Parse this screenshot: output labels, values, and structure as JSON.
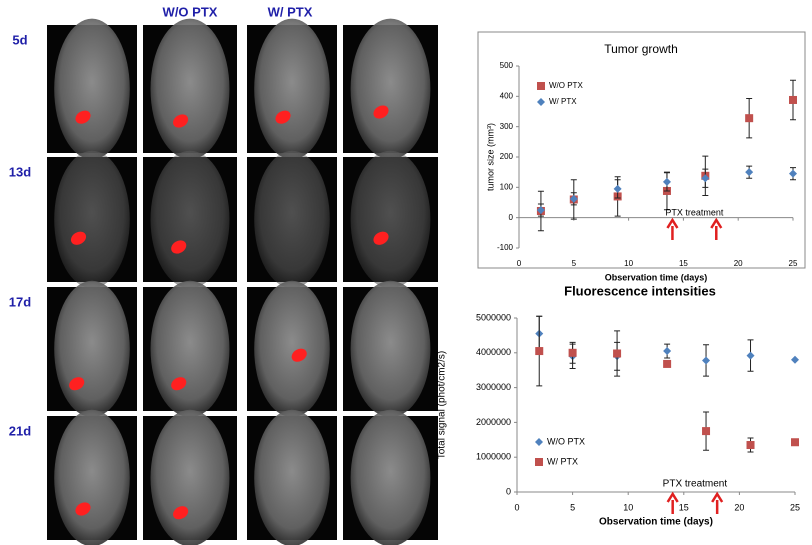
{
  "panel": {
    "columns": [
      "W/O PTX",
      "W/ PTX"
    ],
    "rows": [
      "5d",
      "13d",
      "17d",
      "21d"
    ]
  },
  "chart_data": [
    {
      "type": "scatter",
      "title": "Tumor growth",
      "x_label": "Observation time (days)",
      "y_label": "tumor size (mm³)",
      "x": [
        2,
        5,
        9,
        13.5,
        17,
        21,
        25
      ],
      "series": [
        {
          "name": "W/O PTX",
          "color": "#c0504d",
          "marker": "square",
          "values": [
            22,
            60,
            70,
            88,
            138,
            328,
            388
          ],
          "errors": [
            65,
            65,
            65,
            62,
            65,
            65,
            65
          ]
        },
        {
          "name": "W/ PTX",
          "color": "#4f81bd",
          "marker": "diamond",
          "values": [
            25,
            62,
            95,
            118,
            130,
            150,
            145
          ],
          "errors": [
            20,
            20,
            30,
            30,
            30,
            20,
            20
          ]
        }
      ],
      "xlim": [
        0,
        25
      ],
      "xticks": [
        0,
        5,
        10,
        15,
        20,
        25
      ],
      "ylim": [
        -100,
        500
      ],
      "yticks": [
        -100,
        0,
        100,
        200,
        300,
        400,
        500
      ],
      "annotation": "PTX treatment",
      "arrow_x": [
        14,
        18
      ],
      "legend": "upper-left",
      "border": true
    },
    {
      "type": "scatter",
      "title": "Fluorescence intensities",
      "x_label": "Observation time (days)",
      "y_label": "Total signal (phot/cm2/s)",
      "x": [
        2,
        5,
        9,
        13.5,
        17,
        21,
        25
      ],
      "series": [
        {
          "name": "W/O PTX",
          "color": "#4f81bd",
          "marker": "diamond",
          "values": [
            4550000,
            3900000,
            3900000,
            4050000,
            3780000,
            3920000,
            3800000
          ],
          "errors": [
            500000,
            350000,
            400000,
            200000,
            450000,
            450000,
            0
          ]
        },
        {
          "name": "W/ PTX",
          "color": "#c0504d",
          "marker": "square",
          "values": [
            4050000,
            4000000,
            3980000,
            3680000,
            1750000,
            1350000,
            1430000
          ],
          "errors": [
            1000000,
            300000,
            650000,
            0,
            550000,
            200000,
            0
          ]
        }
      ],
      "xlim": [
        0,
        25
      ],
      "xticks": [
        0,
        5,
        10,
        15,
        20,
        25
      ],
      "ylim": [
        0,
        5000000
      ],
      "yticks": [
        0,
        1000000,
        2000000,
        3000000,
        4000000,
        5000000
      ],
      "annotation": "PTX treatment",
      "arrow_x": [
        14,
        18
      ],
      "legend": "lower-left",
      "border": false
    }
  ]
}
